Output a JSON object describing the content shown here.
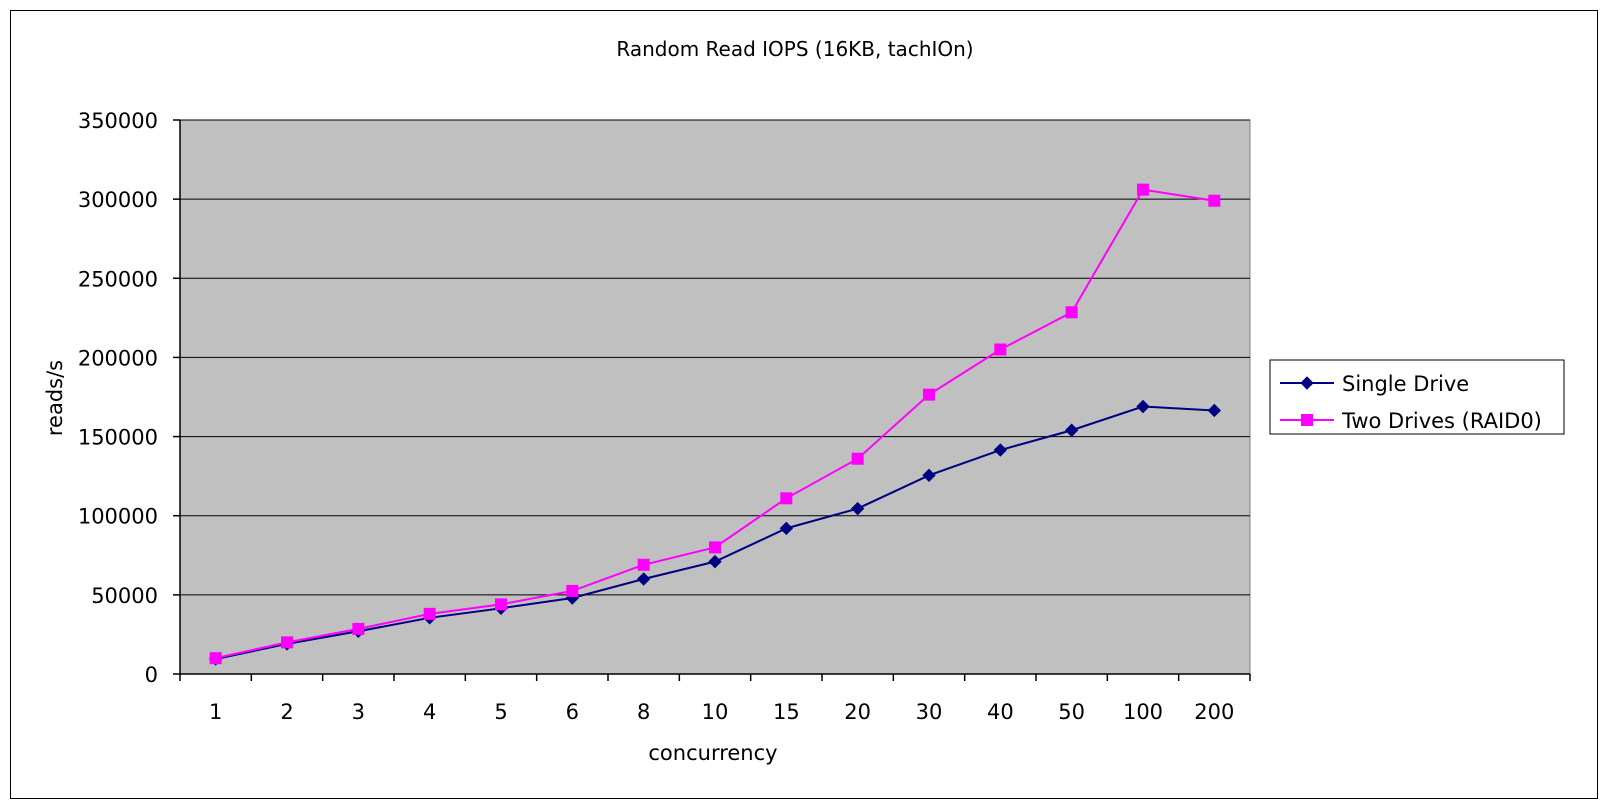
{
  "chart_data": {
    "type": "line",
    "title": "Random Read IOPS (16KB, tachIOn)",
    "xlabel": "concurrency",
    "ylabel": "reads/s",
    "categories": [
      "1",
      "2",
      "3",
      "4",
      "5",
      "6",
      "8",
      "10",
      "15",
      "20",
      "30",
      "40",
      "50",
      "100",
      "200"
    ],
    "ylim": [
      0,
      350000
    ],
    "yticks": [
      "0",
      "50000",
      "100000",
      "150000",
      "200000",
      "250000",
      "300000",
      "350000"
    ],
    "grid": true,
    "legend_position": "right",
    "background_color": "#c0c0c0",
    "series": [
      {
        "name": "Single Drive",
        "color": "#000080",
        "marker": "diamond",
        "values": [
          9500,
          19000,
          27000,
          35500,
          41500,
          48000,
          60000,
          71000,
          92000,
          104500,
          125500,
          141500,
          154000,
          169000,
          166500
        ]
      },
      {
        "name": "Two Drives (RAID0)",
        "color": "#ff00ff",
        "marker": "square",
        "values": [
          10000,
          20000,
          28500,
          38000,
          44000,
          52500,
          69000,
          80000,
          111000,
          136000,
          176500,
          205000,
          228500,
          306000,
          299000
        ]
      }
    ]
  }
}
